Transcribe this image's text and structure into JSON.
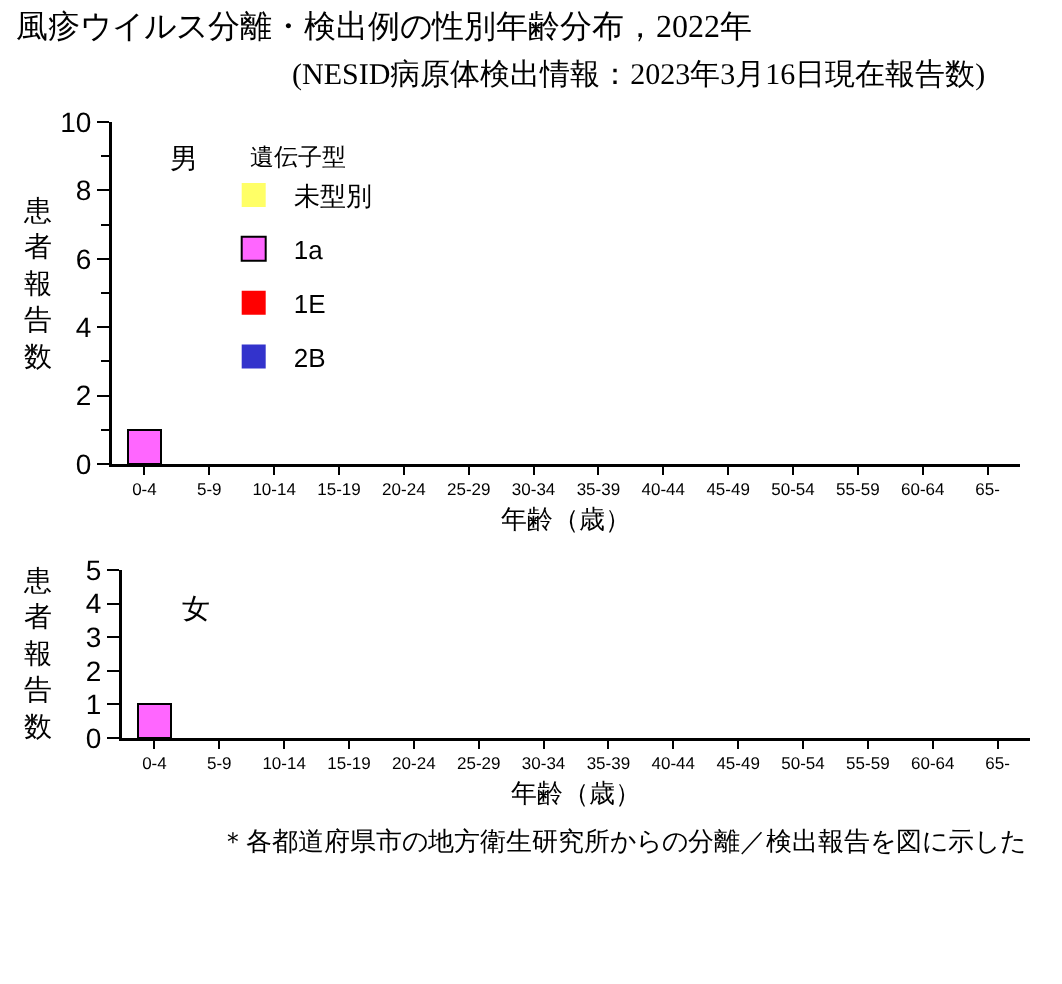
{
  "chart_data": [
    {
      "type": "bar",
      "title": "風疹ウイルス分離・検出例の性別年齢分布，2022年",
      "subtitle": "(NESID病原体検出情報：2023年3月16日現在報告数)",
      "xlabel": "年齢（歳）",
      "ylabel": "患者報告数",
      "legend_title": "遺伝子型",
      "annotations": [
        "男"
      ],
      "categories": [
        "0-4",
        "5-9",
        "10-14",
        "15-19",
        "20-24",
        "25-29",
        "30-34",
        "35-39",
        "40-44",
        "45-49",
        "50-54",
        "55-59",
        "60-64",
        "65-"
      ],
      "series": [
        {
          "name": "未型別",
          "color": "#ffff66",
          "values": [
            0,
            0,
            0,
            0,
            0,
            0,
            0,
            0,
            0,
            0,
            0,
            0,
            0,
            0
          ]
        },
        {
          "name": "1a",
          "color": "#ff66ff",
          "values": [
            1,
            0,
            0,
            0,
            0,
            0,
            0,
            0,
            0,
            0,
            0,
            0,
            0,
            0
          ]
        },
        {
          "name": "1E",
          "color": "#ff0000",
          "values": [
            0,
            0,
            0,
            0,
            0,
            0,
            0,
            0,
            0,
            0,
            0,
            0,
            0,
            0
          ]
        },
        {
          "name": "2B",
          "color": "#3333cc",
          "values": [
            0,
            0,
            0,
            0,
            0,
            0,
            0,
            0,
            0,
            0,
            0,
            0,
            0,
            0
          ]
        }
      ],
      "stacked": true,
      "ylim": [
        0,
        10
      ],
      "yticks": [
        0,
        {
          "value": 1,
          "label": null
        },
        2,
        {
          "value": 3,
          "label": null
        },
        4,
        {
          "value": 5,
          "label": null
        },
        6,
        {
          "value": 7,
          "label": null
        },
        8,
        {
          "value": 9,
          "label": null
        },
        10
      ],
      "grid": false,
      "legend": "top left"
    },
    {
      "type": "bar",
      "xlabel": "年齢（歳）",
      "ylabel": "患者報告数",
      "annotations": [
        "女",
        "＊各都道府県市の地方衛生研究所からの分離／検出報告を図に示した"
      ],
      "categories": [
        "0-4",
        "5-9",
        "10-14",
        "15-19",
        "20-24",
        "25-29",
        "30-34",
        "35-39",
        "40-44",
        "45-49",
        "50-54",
        "55-59",
        "60-64",
        "65-"
      ],
      "series": [
        {
          "color": "#ffff66",
          "values": [
            0,
            0,
            0,
            0,
            0,
            0,
            0,
            0,
            0,
            0,
            0,
            0,
            0,
            0
          ]
        },
        {
          "color": "#ff66ff",
          "values": [
            1,
            0,
            0,
            0,
            0,
            0,
            0,
            0,
            0,
            0,
            0,
            0,
            0,
            0
          ]
        },
        {
          "color": "#ff0000",
          "values": [
            0,
            0,
            0,
            0,
            0,
            0,
            0,
            0,
            0,
            0,
            0,
            0,
            0,
            0
          ]
        },
        {
          "color": "#3333cc",
          "values": [
            0,
            0,
            0,
            0,
            0,
            0,
            0,
            0,
            0,
            0,
            0,
            0,
            0,
            0
          ]
        }
      ],
      "stacked": true,
      "ylim": [
        0,
        5
      ],
      "yticks": [
        0,
        1,
        2,
        3,
        4,
        5
      ],
      "grid": false,
      "legend": false
    }
  ]
}
